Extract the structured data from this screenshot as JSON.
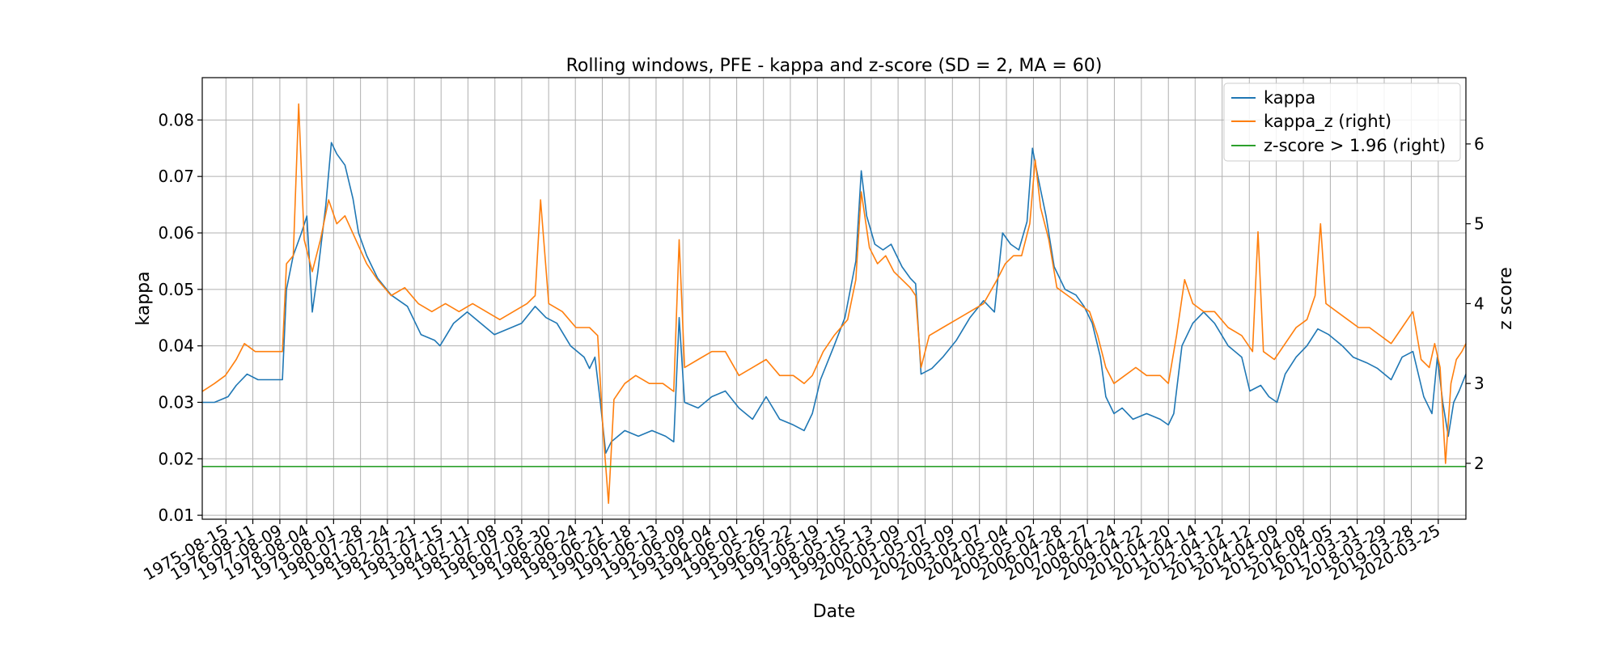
{
  "chart_data": {
    "type": "line",
    "title": "Rolling windows, PFE - kappa and z-score (SD = 2, MA = 60)",
    "xlabel": "Date",
    "ylabel": "kappa",
    "ylabel_right": "z score",
    "ylim": [
      0.0093,
      0.0875
    ],
    "ylim_right": [
      1.3,
      6.83
    ],
    "yticks": [
      0.01,
      0.02,
      0.03,
      0.04,
      0.05,
      0.06,
      0.07,
      0.08
    ],
    "yticks_right": [
      2,
      3,
      4,
      5,
      6
    ],
    "x_tick_labels": [
      "1975-08-15",
      "1976-08-11",
      "1977-08-09",
      "1978-08-04",
      "1979-08-01",
      "1980-07-28",
      "1981-07-24",
      "1982-07-21",
      "1983-07-15",
      "1984-07-11",
      "1985-07-08",
      "1986-07-03",
      "1987-06-30",
      "1988-06-24",
      "1989-06-21",
      "1990-06-18",
      "1991-06-13",
      "1992-06-09",
      "1993-06-04",
      "1994-06-01",
      "1995-05-26",
      "1996-05-22",
      "1997-05-19",
      "1998-05-15",
      "1999-05-13",
      "2000-05-09",
      "2001-05-07",
      "2002-05-09",
      "2003-05-07",
      "2004-05-04",
      "2005-05-02",
      "2006-04-28",
      "2007-04-27",
      "2008-04-24",
      "2009-04-22",
      "2010-04-20",
      "2011-04-14",
      "2012-04-12",
      "2013-04-12",
      "2014-04-09",
      "2015-04-08",
      "2016-04-05",
      "2017-03-31",
      "2018-03-29",
      "2019-03-28",
      "2020-03-25"
    ],
    "x_range_years": [
      1974.75,
      2021.25
    ],
    "grid": true,
    "legend": "top-right",
    "series": [
      {
        "name": "kappa",
        "axis": "left",
        "color": "#1f77b4",
        "points": [
          [
            1974.75,
            0.03
          ],
          [
            1975.2,
            0.03
          ],
          [
            1975.7,
            0.031
          ],
          [
            1976.0,
            0.033
          ],
          [
            1976.4,
            0.035
          ],
          [
            1976.8,
            0.034
          ],
          [
            1977.3,
            0.034
          ],
          [
            1977.7,
            0.034
          ],
          [
            1977.85,
            0.05
          ],
          [
            1978.1,
            0.056
          ],
          [
            1978.4,
            0.06
          ],
          [
            1978.6,
            0.063
          ],
          [
            1978.8,
            0.046
          ],
          [
            1979.0,
            0.053
          ],
          [
            1979.3,
            0.065
          ],
          [
            1979.5,
            0.076
          ],
          [
            1979.7,
            0.074
          ],
          [
            1980.0,
            0.072
          ],
          [
            1980.3,
            0.066
          ],
          [
            1980.5,
            0.06
          ],
          [
            1980.8,
            0.056
          ],
          [
            1981.2,
            0.052
          ],
          [
            1981.7,
            0.049
          ],
          [
            1982.3,
            0.047
          ],
          [
            1982.8,
            0.042
          ],
          [
            1983.3,
            0.041
          ],
          [
            1983.5,
            0.04
          ],
          [
            1984.0,
            0.044
          ],
          [
            1984.5,
            0.046
          ],
          [
            1985.0,
            0.044
          ],
          [
            1985.5,
            0.042
          ],
          [
            1986.0,
            0.043
          ],
          [
            1986.5,
            0.044
          ],
          [
            1987.0,
            0.047
          ],
          [
            1987.4,
            0.045
          ],
          [
            1987.8,
            0.044
          ],
          [
            1988.3,
            0.04
          ],
          [
            1988.8,
            0.038
          ],
          [
            1989.0,
            0.036
          ],
          [
            1989.2,
            0.038
          ],
          [
            1989.4,
            0.03
          ],
          [
            1989.6,
            0.021
          ],
          [
            1989.8,
            0.023
          ],
          [
            1990.3,
            0.025
          ],
          [
            1990.8,
            0.024
          ],
          [
            1991.3,
            0.025
          ],
          [
            1991.8,
            0.024
          ],
          [
            1992.1,
            0.023
          ],
          [
            1992.3,
            0.045
          ],
          [
            1992.5,
            0.03
          ],
          [
            1993.0,
            0.029
          ],
          [
            1993.5,
            0.031
          ],
          [
            1994.0,
            0.032
          ],
          [
            1994.5,
            0.029
          ],
          [
            1995.0,
            0.027
          ],
          [
            1995.5,
            0.031
          ],
          [
            1996.0,
            0.027
          ],
          [
            1996.5,
            0.026
          ],
          [
            1996.9,
            0.025
          ],
          [
            1997.2,
            0.028
          ],
          [
            1997.5,
            0.034
          ],
          [
            1998.0,
            0.04
          ],
          [
            1998.4,
            0.045
          ],
          [
            1998.8,
            0.055
          ],
          [
            1999.0,
            0.071
          ],
          [
            1999.2,
            0.063
          ],
          [
            1999.5,
            0.058
          ],
          [
            1999.8,
            0.057
          ],
          [
            2000.1,
            0.058
          ],
          [
            2000.5,
            0.054
          ],
          [
            2000.8,
            0.052
          ],
          [
            2001.0,
            0.051
          ],
          [
            2001.2,
            0.035
          ],
          [
            2001.6,
            0.036
          ],
          [
            2002.0,
            0.038
          ],
          [
            2002.5,
            0.041
          ],
          [
            2003.0,
            0.045
          ],
          [
            2003.5,
            0.048
          ],
          [
            2003.9,
            0.046
          ],
          [
            2004.2,
            0.06
          ],
          [
            2004.5,
            0.058
          ],
          [
            2004.8,
            0.057
          ],
          [
            2005.1,
            0.062
          ],
          [
            2005.3,
            0.075
          ],
          [
            2005.5,
            0.07
          ],
          [
            2005.8,
            0.063
          ],
          [
            2006.1,
            0.054
          ],
          [
            2006.5,
            0.05
          ],
          [
            2006.9,
            0.049
          ],
          [
            2007.2,
            0.047
          ],
          [
            2007.5,
            0.044
          ],
          [
            2007.8,
            0.038
          ],
          [
            2008.0,
            0.031
          ],
          [
            2008.3,
            0.028
          ],
          [
            2008.6,
            0.029
          ],
          [
            2009.0,
            0.027
          ],
          [
            2009.5,
            0.028
          ],
          [
            2010.0,
            0.027
          ],
          [
            2010.3,
            0.026
          ],
          [
            2010.5,
            0.028
          ],
          [
            2010.8,
            0.04
          ],
          [
            2011.2,
            0.044
          ],
          [
            2011.6,
            0.046
          ],
          [
            2012.0,
            0.044
          ],
          [
            2012.5,
            0.04
          ],
          [
            2013.0,
            0.038
          ],
          [
            2013.3,
            0.032
          ],
          [
            2013.7,
            0.033
          ],
          [
            2014.0,
            0.031
          ],
          [
            2014.3,
            0.03
          ],
          [
            2014.6,
            0.035
          ],
          [
            2015.0,
            0.038
          ],
          [
            2015.4,
            0.04
          ],
          [
            2015.8,
            0.043
          ],
          [
            2016.2,
            0.042
          ],
          [
            2016.7,
            0.04
          ],
          [
            2017.1,
            0.038
          ],
          [
            2017.6,
            0.037
          ],
          [
            2018.0,
            0.036
          ],
          [
            2018.5,
            0.034
          ],
          [
            2018.9,
            0.038
          ],
          [
            2019.3,
            0.039
          ],
          [
            2019.7,
            0.031
          ],
          [
            2020.0,
            0.028
          ],
          [
            2020.2,
            0.038
          ],
          [
            2020.4,
            0.03
          ],
          [
            2020.6,
            0.024
          ],
          [
            2020.8,
            0.03
          ],
          [
            2021.0,
            0.032
          ],
          [
            2021.25,
            0.035
          ]
        ]
      },
      {
        "name": "kappa_z (right)",
        "axis": "right",
        "color": "#ff7f0e",
        "points": [
          [
            1974.75,
            2.9
          ],
          [
            1975.2,
            3.0
          ],
          [
            1975.6,
            3.1
          ],
          [
            1976.0,
            3.3
          ],
          [
            1976.3,
            3.5
          ],
          [
            1976.7,
            3.4
          ],
          [
            1977.2,
            3.4
          ],
          [
            1977.7,
            3.4
          ],
          [
            1977.85,
            4.5
          ],
          [
            1978.1,
            4.6
          ],
          [
            1978.3,
            6.5
          ],
          [
            1978.5,
            4.8
          ],
          [
            1978.8,
            4.4
          ],
          [
            1979.1,
            4.8
          ],
          [
            1979.4,
            5.3
          ],
          [
            1979.7,
            5.0
          ],
          [
            1980.0,
            5.1
          ],
          [
            1980.4,
            4.8
          ],
          [
            1980.8,
            4.5
          ],
          [
            1981.2,
            4.3
          ],
          [
            1981.7,
            4.1
          ],
          [
            1982.2,
            4.2
          ],
          [
            1982.7,
            4.0
          ],
          [
            1983.2,
            3.9
          ],
          [
            1983.7,
            4.0
          ],
          [
            1984.2,
            3.9
          ],
          [
            1984.7,
            4.0
          ],
          [
            1985.2,
            3.9
          ],
          [
            1985.7,
            3.8
          ],
          [
            1986.2,
            3.9
          ],
          [
            1986.7,
            4.0
          ],
          [
            1987.0,
            4.1
          ],
          [
            1987.2,
            5.3
          ],
          [
            1987.5,
            4.0
          ],
          [
            1988.0,
            3.9
          ],
          [
            1988.5,
            3.7
          ],
          [
            1989.0,
            3.7
          ],
          [
            1989.3,
            3.6
          ],
          [
            1989.5,
            2.4
          ],
          [
            1989.7,
            1.5
          ],
          [
            1989.9,
            2.8
          ],
          [
            1990.3,
            3.0
          ],
          [
            1990.7,
            3.1
          ],
          [
            1991.2,
            3.0
          ],
          [
            1991.7,
            3.0
          ],
          [
            1992.1,
            2.9
          ],
          [
            1992.3,
            4.8
          ],
          [
            1992.5,
            3.2
          ],
          [
            1993.0,
            3.3
          ],
          [
            1993.5,
            3.4
          ],
          [
            1994.0,
            3.4
          ],
          [
            1994.5,
            3.1
          ],
          [
            1995.0,
            3.2
          ],
          [
            1995.5,
            3.3
          ],
          [
            1996.0,
            3.1
          ],
          [
            1996.5,
            3.1
          ],
          [
            1996.9,
            3.0
          ],
          [
            1997.2,
            3.1
          ],
          [
            1997.6,
            3.4
          ],
          [
            1998.0,
            3.6
          ],
          [
            1998.5,
            3.8
          ],
          [
            1998.8,
            4.3
          ],
          [
            1999.0,
            5.4
          ],
          [
            1999.3,
            4.7
          ],
          [
            1999.6,
            4.5
          ],
          [
            1999.9,
            4.6
          ],
          [
            2000.2,
            4.4
          ],
          [
            2000.5,
            4.3
          ],
          [
            2000.8,
            4.2
          ],
          [
            2001.0,
            4.1
          ],
          [
            2001.2,
            3.2
          ],
          [
            2001.5,
            3.6
          ],
          [
            2002.0,
            3.7
          ],
          [
            2002.5,
            3.8
          ],
          [
            2003.0,
            3.9
          ],
          [
            2003.5,
            4.0
          ],
          [
            2004.0,
            4.3
          ],
          [
            2004.3,
            4.5
          ],
          [
            2004.6,
            4.6
          ],
          [
            2004.9,
            4.6
          ],
          [
            2005.2,
            5.0
          ],
          [
            2005.4,
            5.8
          ],
          [
            2005.6,
            5.2
          ],
          [
            2005.9,
            4.8
          ],
          [
            2006.2,
            4.2
          ],
          [
            2006.6,
            4.1
          ],
          [
            2007.0,
            4.0
          ],
          [
            2007.4,
            3.9
          ],
          [
            2007.7,
            3.6
          ],
          [
            2008.0,
            3.2
          ],
          [
            2008.3,
            3.0
          ],
          [
            2008.7,
            3.1
          ],
          [
            2009.1,
            3.2
          ],
          [
            2009.5,
            3.1
          ],
          [
            2010.0,
            3.1
          ],
          [
            2010.3,
            3.0
          ],
          [
            2010.6,
            3.6
          ],
          [
            2010.9,
            4.3
          ],
          [
            2011.2,
            4.0
          ],
          [
            2011.6,
            3.9
          ],
          [
            2012.0,
            3.9
          ],
          [
            2012.5,
            3.7
          ],
          [
            2013.0,
            3.6
          ],
          [
            2013.4,
            3.4
          ],
          [
            2013.6,
            4.9
          ],
          [
            2013.8,
            3.4
          ],
          [
            2014.2,
            3.3
          ],
          [
            2014.6,
            3.5
          ],
          [
            2015.0,
            3.7
          ],
          [
            2015.4,
            3.8
          ],
          [
            2015.7,
            4.1
          ],
          [
            2015.9,
            5.0
          ],
          [
            2016.1,
            4.0
          ],
          [
            2016.5,
            3.9
          ],
          [
            2016.9,
            3.8
          ],
          [
            2017.3,
            3.7
          ],
          [
            2017.7,
            3.7
          ],
          [
            2018.1,
            3.6
          ],
          [
            2018.5,
            3.5
          ],
          [
            2018.9,
            3.7
          ],
          [
            2019.3,
            3.9
          ],
          [
            2019.6,
            3.3
          ],
          [
            2019.9,
            3.2
          ],
          [
            2020.1,
            3.5
          ],
          [
            2020.3,
            3.2
          ],
          [
            2020.5,
            2.0
          ],
          [
            2020.7,
            3.0
          ],
          [
            2020.9,
            3.3
          ],
          [
            2021.1,
            3.4
          ],
          [
            2021.25,
            3.5
          ]
        ]
      },
      {
        "name": "z-score > 1.96 (right)",
        "axis": "right",
        "color": "#2ca02c",
        "points": [
          [
            1974.75,
            1.96
          ],
          [
            2021.25,
            1.96
          ]
        ]
      }
    ]
  }
}
